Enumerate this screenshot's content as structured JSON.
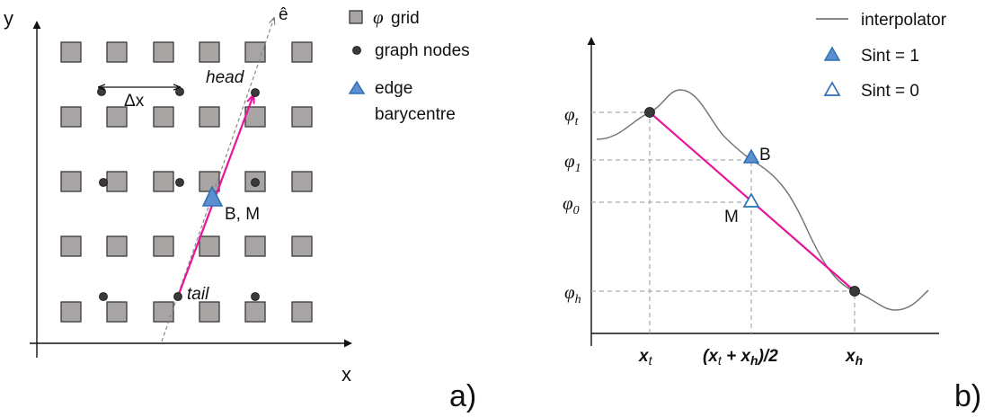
{
  "panel_a": {
    "label": "a)",
    "axis_y": "y",
    "axis_x": "x",
    "direction_label": "ê",
    "delta_label": "Δx",
    "head_label": "head",
    "tail_label": "tail",
    "barycentre_label": "B, M",
    "legend": [
      {
        "symbol": "gray-square",
        "phi": "φ",
        "label": "grid"
      },
      {
        "symbol": "black-dot",
        "label": "graph nodes"
      },
      {
        "symbol": "filled-triangle",
        "label": "edge",
        "label2": "barycentre"
      }
    ]
  },
  "panel_b": {
    "label": "b)",
    "legend": [
      {
        "symbol": "gray-line",
        "label": "interpolator"
      },
      {
        "symbol": "filled-triangle",
        "label": "Sint = 1"
      },
      {
        "symbol": "hollow-triangle",
        "label": "Sint = 0"
      }
    ],
    "y_labels": [
      {
        "base": "φ",
        "sub": "t"
      },
      {
        "base": "φ",
        "sub": "1"
      },
      {
        "base": "φ",
        "sub": "0"
      },
      {
        "base": "φ",
        "sub": "h"
      }
    ],
    "x_labels": {
      "xt": {
        "base": "x",
        "sub": "t"
      },
      "mid": {
        "open": "(",
        "x1": "x",
        "s1": "t",
        "plus": " + ",
        "x2": "x",
        "s2": "h",
        "close": ")/2"
      },
      "xh": {
        "base": "x",
        "sub": "h"
      }
    },
    "point_B": "B",
    "point_M": "M"
  },
  "colors": {
    "edge": "#e8149b",
    "triangle_fill": "#5b8fd0",
    "triangle_stroke": "#2d6fb5",
    "square_fill": "#a8a4a4",
    "interpolator": "#777777"
  }
}
